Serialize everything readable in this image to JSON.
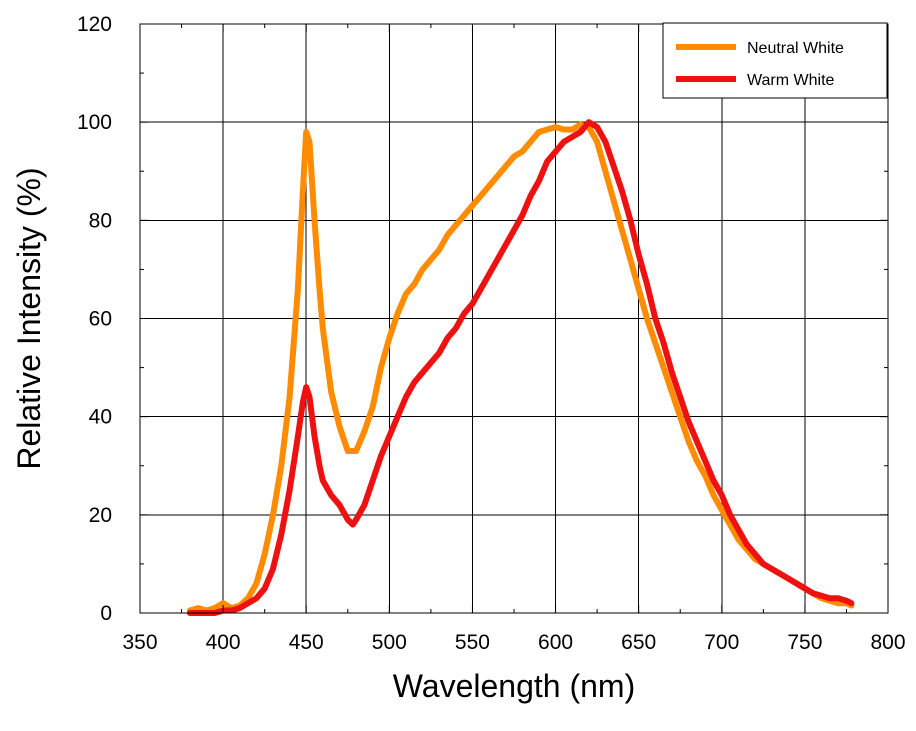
{
  "chart_data": {
    "type": "line",
    "title": "",
    "xlabel": "Wavelength (nm)",
    "ylabel": "Relative Intensity (%)",
    "xlim": [
      350,
      800
    ],
    "ylim": [
      0,
      120
    ],
    "xticks": [
      350,
      400,
      450,
      500,
      550,
      600,
      650,
      700,
      750,
      800
    ],
    "yticks": [
      0,
      20,
      40,
      60,
      80,
      100,
      120
    ],
    "xtick_labels": [
      "350",
      "400",
      "450",
      "500",
      "550",
      "600",
      "650",
      "700",
      "750",
      "800"
    ],
    "ytick_labels": [
      "0",
      "20",
      "40",
      "60",
      "80",
      "100",
      "120"
    ],
    "grid": true,
    "legend_position": "top-right",
    "series": [
      {
        "name": "Neutral White",
        "color": "#ff8c00",
        "x": [
          380,
          385,
          390,
          395,
          400,
          405,
          410,
          415,
          420,
          425,
          430,
          435,
          440,
          445,
          448,
          450,
          452,
          455,
          458,
          460,
          465,
          470,
          475,
          480,
          485,
          490,
          495,
          500,
          505,
          510,
          515,
          520,
          525,
          530,
          535,
          540,
          545,
          550,
          555,
          560,
          565,
          570,
          575,
          580,
          585,
          590,
          595,
          600,
          605,
          610,
          615,
          620,
          625,
          630,
          635,
          640,
          645,
          650,
          655,
          660,
          665,
          670,
          675,
          680,
          685,
          690,
          695,
          700,
          705,
          710,
          715,
          720,
          725,
          730,
          735,
          740,
          745,
          750,
          755,
          760,
          765,
          770,
          775,
          778
        ],
        "y": [
          0.5,
          1,
          0.5,
          1,
          2,
          1,
          1.5,
          3,
          6,
          12,
          20,
          30,
          44,
          66,
          86,
          98,
          96,
          80,
          66,
          58,
          45,
          38,
          33,
          33,
          37,
          42,
          50,
          56,
          61,
          65,
          67,
          70,
          72,
          74,
          77,
          79,
          81,
          83,
          85,
          87,
          89,
          91,
          93,
          94,
          96,
          98,
          98.5,
          99,
          98.5,
          98.5,
          99.5,
          99,
          96,
          90,
          84,
          78,
          72,
          66,
          60,
          55,
          50,
          45,
          40,
          35,
          31,
          28,
          24,
          21,
          18,
          15,
          13,
          11,
          10,
          9,
          8,
          7,
          6,
          5,
          4,
          3,
          2.5,
          2,
          2,
          1.5
        ]
      },
      {
        "name": "Warm White",
        "color": "#ee1111",
        "x": [
          380,
          385,
          390,
          395,
          400,
          405,
          410,
          415,
          420,
          425,
          430,
          435,
          440,
          445,
          448,
          450,
          452,
          455,
          458,
          460,
          465,
          470,
          475,
          478,
          480,
          485,
          490,
          495,
          500,
          505,
          510,
          515,
          520,
          525,
          530,
          535,
          540,
          545,
          550,
          555,
          560,
          565,
          570,
          575,
          580,
          585,
          590,
          595,
          600,
          605,
          610,
          615,
          620,
          625,
          630,
          635,
          640,
          645,
          650,
          655,
          660,
          665,
          670,
          675,
          680,
          685,
          690,
          695,
          700,
          705,
          710,
          715,
          720,
          725,
          730,
          735,
          740,
          745,
          750,
          755,
          760,
          765,
          770,
          775,
          778
        ],
        "y": [
          0,
          0,
          0,
          0,
          0.5,
          0.5,
          1,
          2,
          3,
          5,
          9,
          16,
          25,
          36,
          43,
          46,
          44,
          36,
          30,
          27,
          24,
          22,
          19,
          18,
          19,
          22,
          27,
          32,
          36,
          40,
          44,
          47,
          49,
          51,
          53,
          56,
          58,
          61,
          63,
          66,
          69,
          72,
          75,
          78,
          81,
          85,
          88,
          92,
          94,
          96,
          97,
          98,
          100,
          99,
          96,
          91,
          86,
          80,
          73,
          67,
          60,
          55,
          49,
          44,
          39,
          35,
          31,
          27,
          24,
          20,
          17,
          14,
          12,
          10,
          9,
          8,
          7,
          6,
          5,
          4,
          3.5,
          3,
          3,
          2.5,
          2
        ]
      }
    ]
  }
}
